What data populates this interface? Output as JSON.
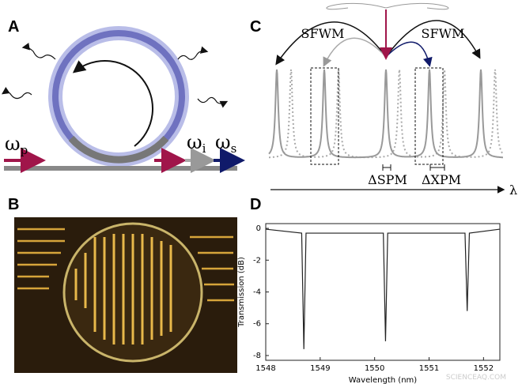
{
  "panel_labels": [
    "A",
    "B",
    "C",
    "D"
  ],
  "panel_a": {
    "pump": {
      "symbol": "ω",
      "sub": "p"
    },
    "idler": {
      "symbol": "ω",
      "sub": "i"
    },
    "signal": {
      "symbol": "ω",
      "sub": "s"
    }
  },
  "panel_c": {
    "process_labels": [
      "SFWM",
      "SFWM"
    ],
    "shift_labels": [
      "ΔSPM",
      "ΔXPM"
    ],
    "axis_label": "λ"
  },
  "watermark": "SCIENCEAQ.COM",
  "chart_data": {
    "type": "line",
    "x_label": "Wavelength (nm)",
    "y_label": "Transmission (dB)",
    "x": [
      1548,
      1548.66,
      1548.7,
      1548.74,
      1550.16,
      1550.2,
      1550.24,
      1551.66,
      1551.7,
      1551.74,
      1552.3
    ],
    "series": [
      {
        "color": "#222222",
        "values": [
          -0.05,
          -0.3,
          -7.6,
          -0.3,
          -0.3,
          -7.1,
          -0.3,
          -0.3,
          -5.2,
          -0.3,
          -0.05
        ]
      }
    ],
    "xlim": [
      1548,
      1552.3
    ],
    "ylim": [
      -8.3,
      0.3
    ],
    "xticks": [
      1548,
      1549,
      1550,
      1551,
      1552
    ],
    "yticks": [
      0,
      -2,
      -4,
      -6,
      -8
    ]
  }
}
